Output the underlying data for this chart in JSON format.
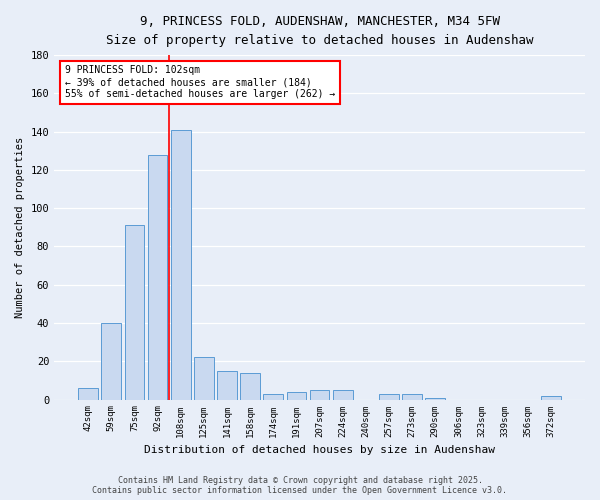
{
  "title_line1": "9, PRINCESS FOLD, AUDENSHAW, MANCHESTER, M34 5FW",
  "title_line2": "Size of property relative to detached houses in Audenshaw",
  "xlabel": "Distribution of detached houses by size in Audenshaw",
  "ylabel": "Number of detached properties",
  "categories": [
    "42sqm",
    "59sqm",
    "75sqm",
    "92sqm",
    "108sqm",
    "125sqm",
    "141sqm",
    "158sqm",
    "174sqm",
    "191sqm",
    "207sqm",
    "224sqm",
    "240sqm",
    "257sqm",
    "273sqm",
    "290sqm",
    "306sqm",
    "323sqm",
    "339sqm",
    "356sqm",
    "372sqm"
  ],
  "values": [
    6,
    40,
    91,
    128,
    141,
    22,
    15,
    14,
    3,
    4,
    5,
    5,
    0,
    3,
    3,
    1,
    0,
    0,
    0,
    0,
    2
  ],
  "bar_color": "#c9d9f0",
  "bar_edge_color": "#5b9bd5",
  "background_color": "#e8eef8",
  "gridcolor": "#ffffff",
  "vline_color": "red",
  "vline_x_index": 3.5,
  "annotation_text": "9 PRINCESS FOLD: 102sqm\n← 39% of detached houses are smaller (184)\n55% of semi-detached houses are larger (262) →",
  "annotation_box_color": "white",
  "annotation_box_edge": "red",
  "footer_line1": "Contains HM Land Registry data © Crown copyright and database right 2025.",
  "footer_line2": "Contains public sector information licensed under the Open Government Licence v3.0.",
  "ylim": [
    0,
    180
  ],
  "yticks": [
    0,
    20,
    40,
    60,
    80,
    100,
    120,
    140,
    160,
    180
  ]
}
